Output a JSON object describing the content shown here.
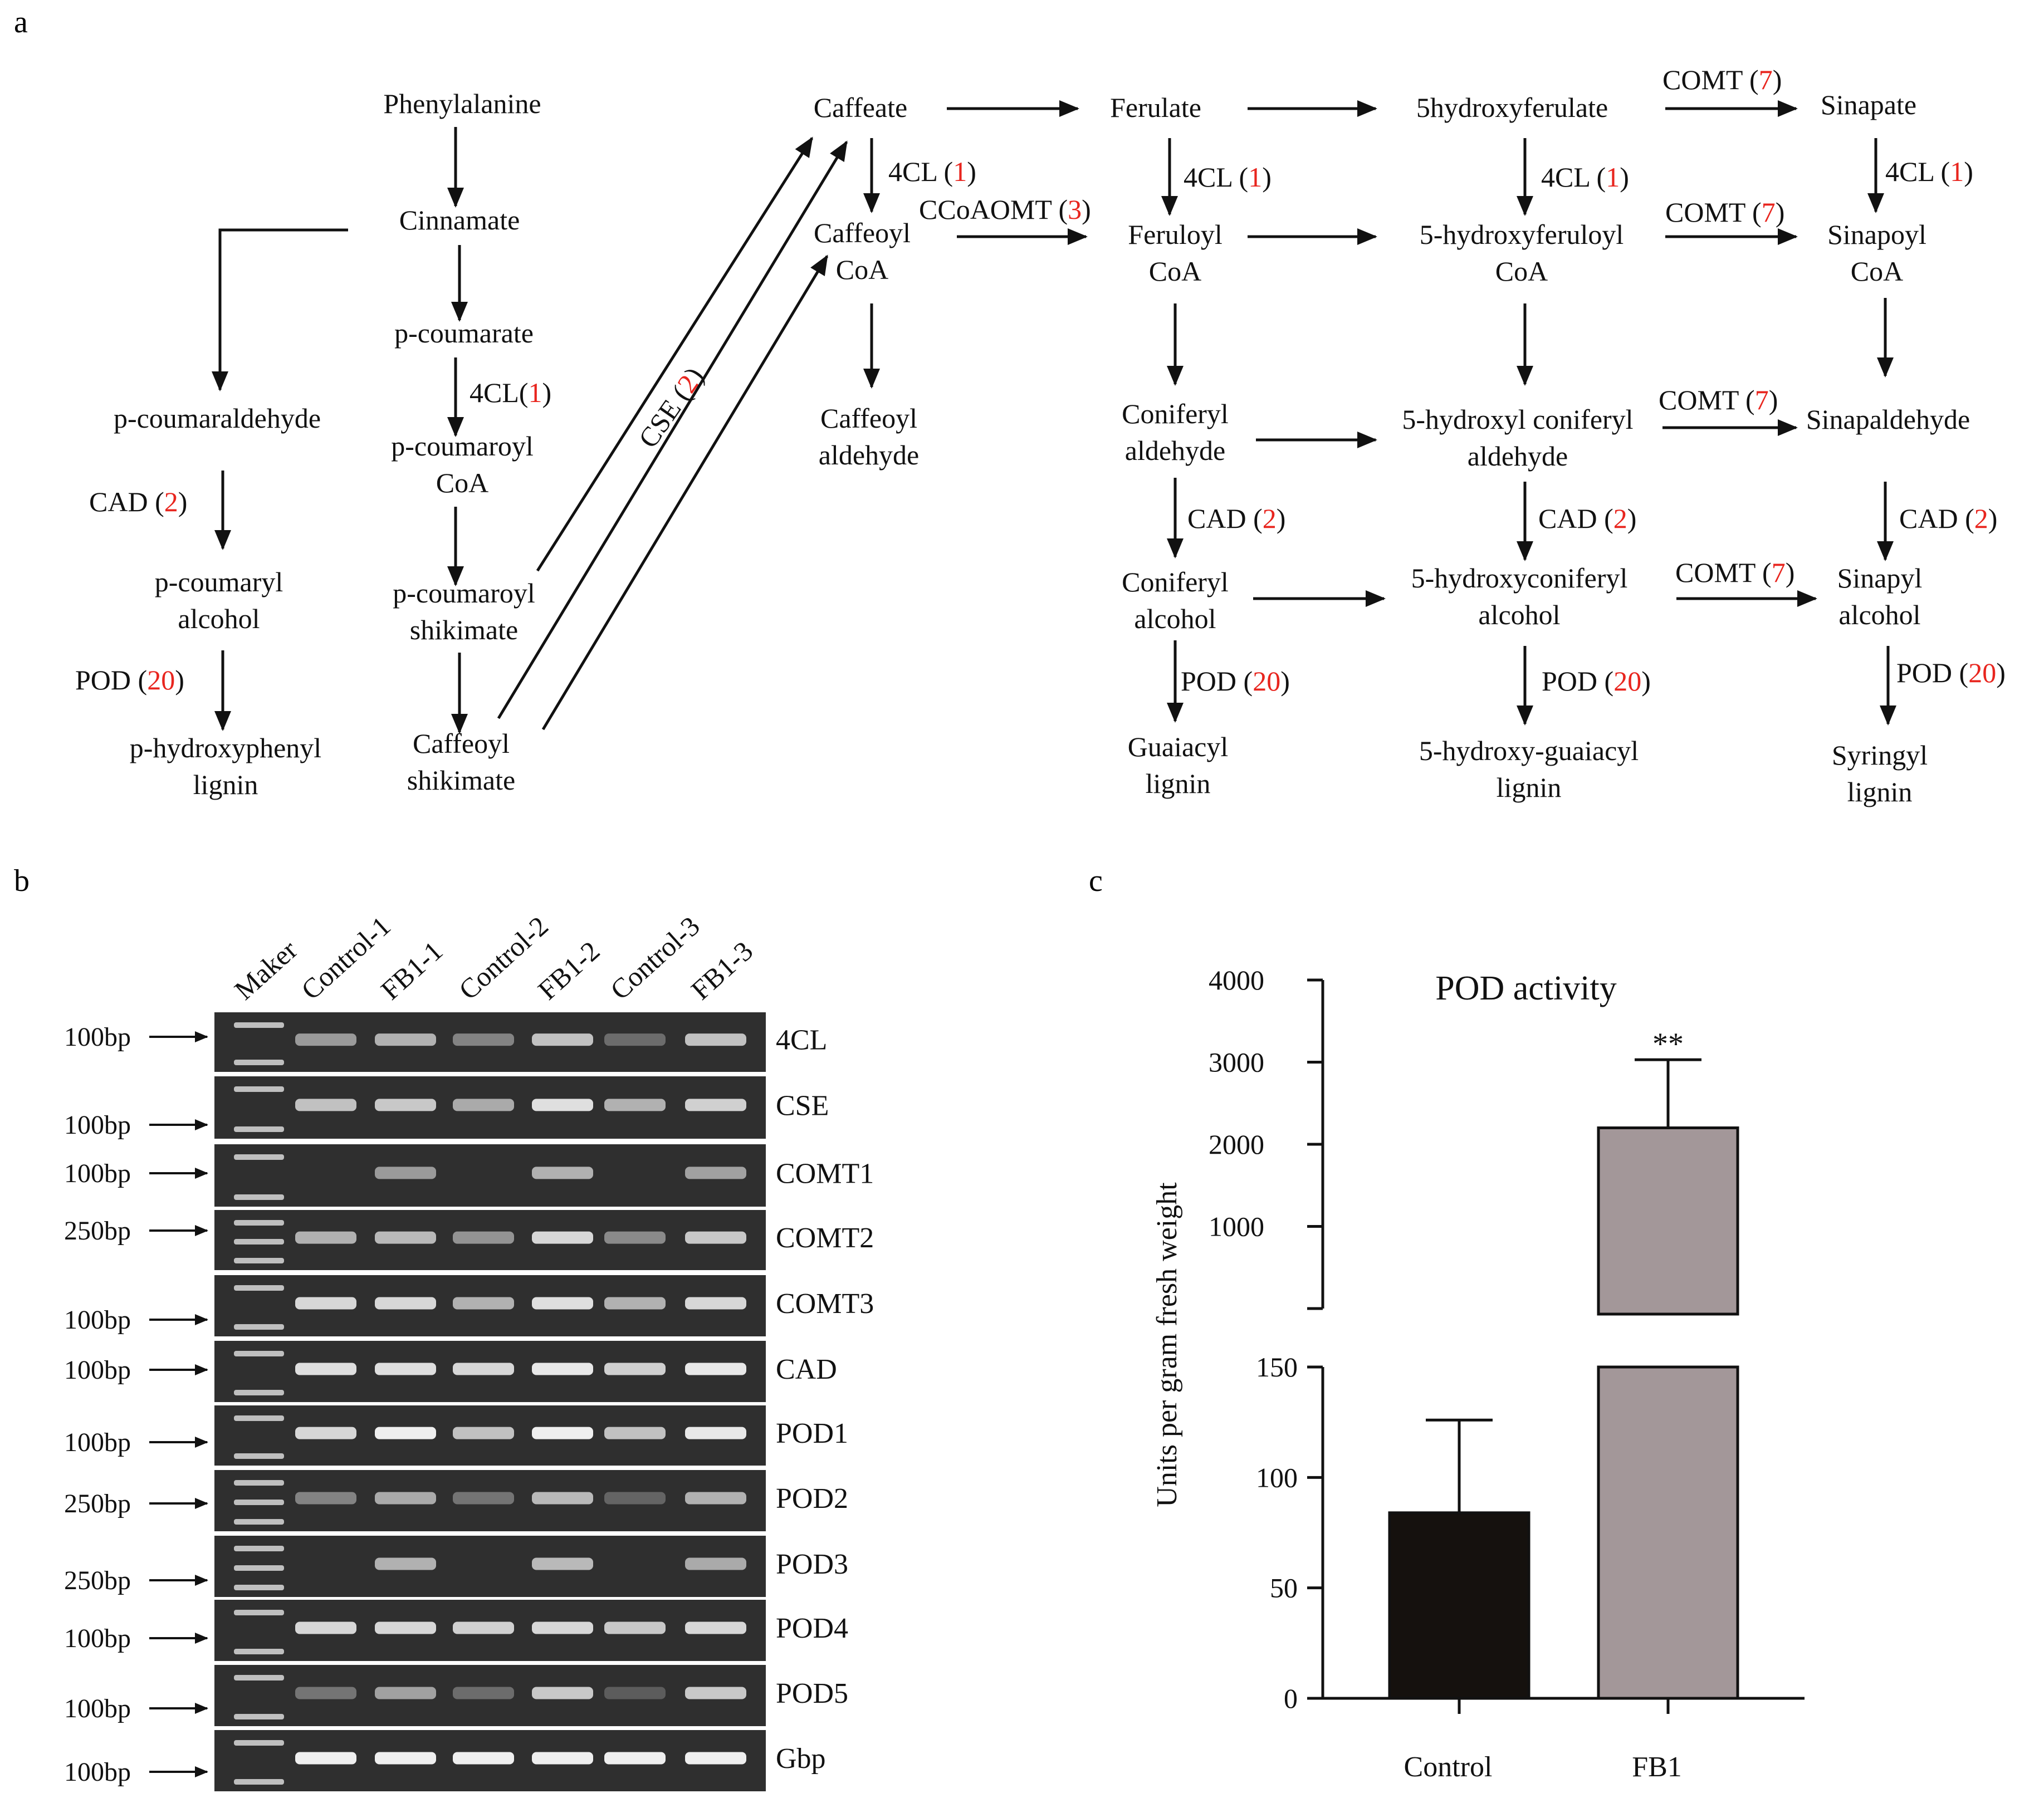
{
  "panels": {
    "a": "a",
    "b": "b",
    "c": "c"
  },
  "colors": {
    "ink": "#111111",
    "accent": "#e8251e",
    "gel_bg": "#2f2f2f",
    "band": "#efefef",
    "control_bar": "#15110e",
    "fb1_bar": "#a39799"
  },
  "pathway": {
    "nodes": [
      {
        "id": "phe",
        "lines": [
          "Phenylalanine"
        ]
      },
      {
        "id": "cin",
        "lines": [
          "Cinnamate"
        ]
      },
      {
        "id": "pcm",
        "lines": [
          "p-coumarate"
        ]
      },
      {
        "id": "pcoa",
        "lines": [
          "p-coumaroyl",
          "CoA"
        ]
      },
      {
        "id": "pshik",
        "lines": [
          "p-coumaroyl",
          "shikimate"
        ]
      },
      {
        "id": "cshik",
        "lines": [
          "Caffeoyl",
          "shikimate"
        ]
      },
      {
        "id": "pald",
        "lines": [
          "p-coumaraldehyde"
        ]
      },
      {
        "id": "palc",
        "lines": [
          "p-coumaryl",
          "alcohol"
        ]
      },
      {
        "id": "hlig",
        "lines": [
          "p-hydroxyphenyl",
          "lignin"
        ]
      },
      {
        "id": "caf",
        "lines": [
          "Caffeate"
        ]
      },
      {
        "id": "cafcoa",
        "lines": [
          "Caffeoyl",
          "CoA"
        ]
      },
      {
        "id": "cafald",
        "lines": [
          "Caffeoyl",
          "aldehyde"
        ]
      },
      {
        "id": "fer",
        "lines": [
          "Ferulate"
        ]
      },
      {
        "id": "fercoa",
        "lines": [
          "Feruloyl",
          "CoA"
        ]
      },
      {
        "id": "conald",
        "lines": [
          "Coniferyl",
          "aldehyde"
        ]
      },
      {
        "id": "conalc",
        "lines": [
          "Coniferyl",
          "alcohol"
        ]
      },
      {
        "id": "glig",
        "lines": [
          "Guaiacyl",
          "lignin"
        ]
      },
      {
        "id": "hfer",
        "lines": [
          "5hydroxyferulate"
        ]
      },
      {
        "id": "hfcoa",
        "lines": [
          "5-hydroxyferuloyl",
          "CoA"
        ]
      },
      {
        "id": "hcald",
        "lines": [
          "5-hydroxyl coniferyl",
          "aldehyde"
        ]
      },
      {
        "id": "hcalc",
        "lines": [
          "5-hydroxyconiferyl",
          "alcohol"
        ]
      },
      {
        "id": "hglig",
        "lines": [
          "5-hydroxy-guaiacyl",
          "lignin"
        ]
      },
      {
        "id": "sin",
        "lines": [
          "Sinapate"
        ]
      },
      {
        "id": "sincoa",
        "lines": [
          "Sinapoyl",
          "CoA"
        ]
      },
      {
        "id": "sinald",
        "lines": [
          "Sinapaldehyde"
        ]
      },
      {
        "id": "sinalc",
        "lines": [
          "Sinapyl",
          "alcohol"
        ]
      },
      {
        "id": "slig",
        "lines": [
          "Syringyl",
          "lignin"
        ]
      }
    ],
    "enzymes": [
      {
        "id": "e1",
        "text": "4CL(",
        "count": "1",
        "close": ")"
      },
      {
        "id": "e2",
        "text": "CAD (",
        "count": "2",
        "close": ")"
      },
      {
        "id": "e3",
        "text": "POD (",
        "count": "20",
        "close": ")"
      },
      {
        "id": "e4",
        "text": "CSE (",
        "count": "2",
        "close": ")"
      },
      {
        "id": "e5",
        "text": "4CL (",
        "count": "1",
        "close": ")"
      },
      {
        "id": "e6",
        "text": "CCoAOMT (",
        "count": "3",
        "close": ")"
      },
      {
        "id": "e7",
        "text": "4CL (",
        "count": "1",
        "close": ")"
      },
      {
        "id": "e8",
        "text": "CAD (",
        "count": "2",
        "close": ")"
      },
      {
        "id": "e9",
        "text": "POD (",
        "count": "20",
        "close": ")"
      },
      {
        "id": "e10",
        "text": "4CL (",
        "count": "1",
        "close": ")"
      },
      {
        "id": "e11",
        "text": "CAD (",
        "count": "2",
        "close": ")"
      },
      {
        "id": "e12",
        "text": "POD (",
        "count": "20",
        "close": ")"
      },
      {
        "id": "e13",
        "text": "COMT (",
        "count": "7",
        "close": ")"
      },
      {
        "id": "e14",
        "text": "COMT (",
        "count": "7",
        "close": ")"
      },
      {
        "id": "e15",
        "text": "COMT (",
        "count": "7",
        "close": ")"
      },
      {
        "id": "e16",
        "text": "COMT (",
        "count": "7",
        "close": ")"
      },
      {
        "id": "e17",
        "text": "4CL (",
        "count": "1",
        "close": ")"
      },
      {
        "id": "e18",
        "text": "CAD (",
        "count": "2",
        "close": ")"
      },
      {
        "id": "e19",
        "text": "POD (",
        "count": "20",
        "close": ")"
      }
    ]
  },
  "gel": {
    "lanes": [
      "Maker",
      "Control-1",
      "FB1-1",
      "Control-2",
      "FB1-2",
      "Control-3",
      "FB1-3"
    ],
    "rows": [
      {
        "gene": "4CL",
        "marker": "100bp",
        "intensity": [
          0.45,
          0.6,
          0.3,
          0.7,
          0.15,
          0.7
        ]
      },
      {
        "gene": "CSE",
        "marker": "100bp",
        "intensity": [
          0.7,
          0.75,
          0.55,
          0.9,
          0.6,
          0.8
        ]
      },
      {
        "gene": "COMT1",
        "marker": "100bp",
        "intensity": [
          0.0,
          0.45,
          0.0,
          0.6,
          0.0,
          0.5
        ]
      },
      {
        "gene": "COMT2",
        "marker": "250bp",
        "intensity": [
          0.6,
          0.65,
          0.4,
          0.85,
          0.35,
          0.75
        ]
      },
      {
        "gene": "COMT3",
        "marker": "100bp",
        "intensity": [
          0.85,
          0.85,
          0.6,
          0.9,
          0.6,
          0.85
        ]
      },
      {
        "gene": "CAD",
        "marker": "100bp",
        "intensity": [
          0.9,
          0.9,
          0.85,
          0.95,
          0.8,
          0.95
        ]
      },
      {
        "gene": "POD1",
        "marker": "100bp",
        "intensity": [
          0.85,
          1.0,
          0.7,
          1.0,
          0.7,
          0.95
        ]
      },
      {
        "gene": "POD2",
        "marker": "250bp",
        "intensity": [
          0.3,
          0.55,
          0.2,
          0.65,
          0.1,
          0.6
        ]
      },
      {
        "gene": "POD3",
        "marker": "250bp",
        "intensity": [
          0.0,
          0.6,
          0.0,
          0.65,
          0.0,
          0.55
        ]
      },
      {
        "gene": "POD4",
        "marker": "100bp",
        "intensity": [
          0.85,
          0.85,
          0.8,
          0.85,
          0.75,
          0.85
        ]
      },
      {
        "gene": "POD5",
        "marker": "100bp",
        "intensity": [
          0.2,
          0.5,
          0.15,
          0.75,
          0.05,
          0.75
        ]
      },
      {
        "gene": "Gbp",
        "marker": "100bp",
        "intensity": [
          1.0,
          1.0,
          1.0,
          1.0,
          1.0,
          1.0
        ]
      }
    ]
  },
  "chart_data": {
    "type": "bar",
    "title": "POD activity",
    "ylabel": "Units per gram fresh weight",
    "xlabel": "",
    "categories": [
      "Control",
      "FB1"
    ],
    "values": [
      84,
      2200
    ],
    "errors": [
      42,
      830
    ],
    "significance": [
      "",
      "**"
    ],
    "axis_break": {
      "lower_range": [
        0,
        150
      ],
      "upper_range": [
        0,
        4000
      ]
    },
    "lower_ticks": [
      "0",
      "50",
      "100",
      "150"
    ],
    "upper_ticks": [
      "1000",
      "2000",
      "3000",
      "4000"
    ]
  }
}
